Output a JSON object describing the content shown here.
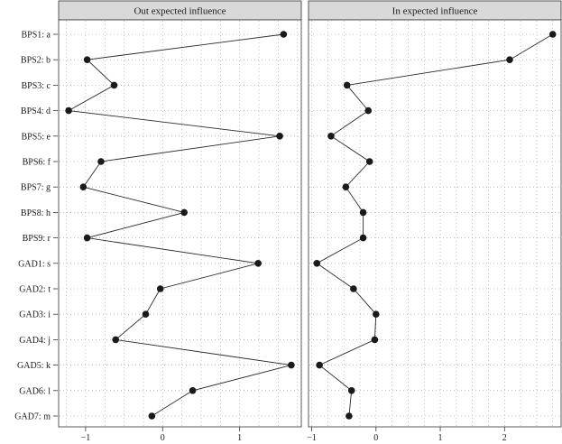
{
  "chart_data": [
    {
      "type": "line",
      "title": "Out expected influence",
      "categories": [
        "BPS1: a",
        "BPS2: b",
        "BPS3: c",
        "BPS4: d",
        "BPS5: e",
        "BPS6: f",
        "BPS7: g",
        "BPS8: h",
        "BPS9: r",
        "GAD1: s",
        "GAD2: t",
        "GAD3: i",
        "GAD4: j",
        "GAD5: k",
        "GAD6: l",
        "GAD7: m"
      ],
      "values": [
        1.57,
        -0.98,
        -0.63,
        -1.22,
        1.52,
        -0.8,
        -1.03,
        0.28,
        -0.98,
        1.24,
        -0.03,
        -0.22,
        -0.61,
        1.67,
        0.39,
        -0.14
      ],
      "xlim": [
        -1.35,
        1.8
      ],
      "xticks": [
        -1,
        0,
        1
      ],
      "tick_labels": [
        "−1",
        "0",
        "1"
      ],
      "grid": true,
      "orientation": "horizontal"
    },
    {
      "type": "line",
      "title": "In expected influence",
      "categories": [
        "BPS1: a",
        "BPS2: b",
        "BPS3: c",
        "BPS4: d",
        "BPS5: e",
        "BPS6: f",
        "BPS7: g",
        "BPS8: h",
        "BPS9: r",
        "GAD1: s",
        "GAD2: t",
        "GAD3: i",
        "GAD4: j",
        "GAD5: k",
        "GAD6: l",
        "GAD7: m"
      ],
      "values": [
        2.75,
        2.08,
        -0.45,
        -0.12,
        -0.7,
        -0.1,
        -0.47,
        -0.2,
        -0.2,
        -0.92,
        -0.35,
        0.0,
        -0.02,
        -0.88,
        -0.38,
        -0.42
      ],
      "xlim": [
        -1.05,
        2.88
      ],
      "xticks": [
        -1,
        0,
        1,
        2
      ],
      "tick_labels": [
        "−1",
        "0",
        "1",
        "2"
      ],
      "grid": true,
      "orientation": "horizontal"
    }
  ]
}
